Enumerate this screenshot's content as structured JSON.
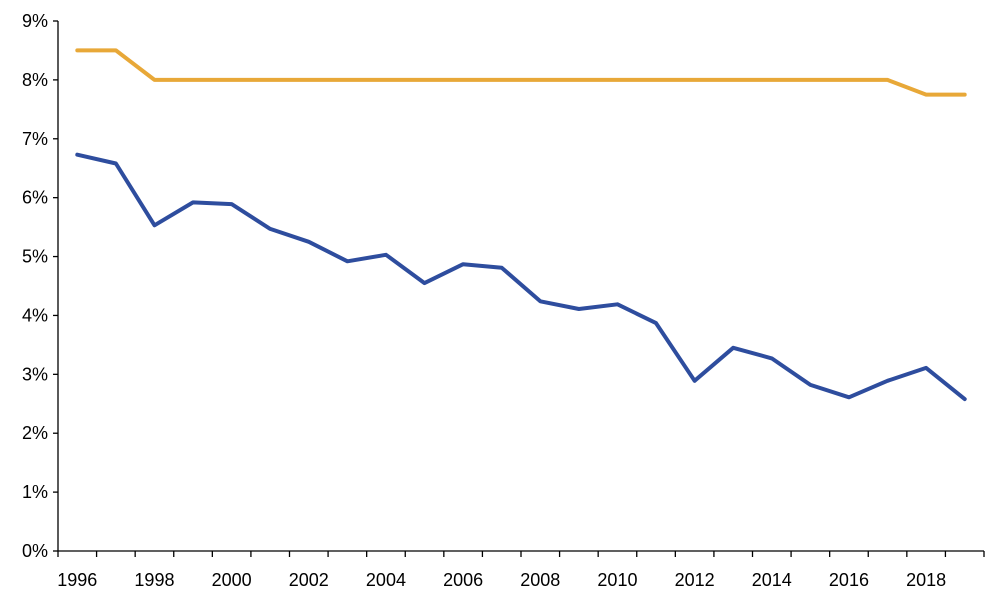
{
  "chart_data": {
    "type": "line",
    "title": "",
    "xlabel": "",
    "ylabel": "",
    "x": [
      1996,
      1997,
      1998,
      1999,
      2000,
      2001,
      2002,
      2003,
      2004,
      2005,
      2006,
      2007,
      2008,
      2009,
      2010,
      2011,
      2012,
      2013,
      2014,
      2015,
      2016,
      2017,
      2018,
      2019
    ],
    "x_tick_labels": [
      "1996",
      "1998",
      "2000",
      "2002",
      "2004",
      "2006",
      "2008",
      "2010",
      "2012",
      "2014",
      "2016",
      "2018"
    ],
    "y_tick_labels": [
      "0%",
      "1%",
      "2%",
      "3%",
      "4%",
      "5%",
      "6%",
      "7%",
      "8%",
      "9%"
    ],
    "ylim": [
      0,
      9
    ],
    "y_unit": "%",
    "grid": false,
    "legend": "none",
    "series": [
      {
        "color": "#E8A838",
        "values": [
          8.5,
          8.5,
          8.0,
          8.0,
          8.0,
          8.0,
          8.0,
          8.0,
          8.0,
          8.0,
          8.0,
          8.0,
          8.0,
          8.0,
          8.0,
          8.0,
          8.0,
          8.0,
          8.0,
          8.0,
          8.0,
          8.0,
          7.75,
          7.75
        ]
      },
      {
        "color": "#2E4D9E",
        "values": [
          6.73,
          6.58,
          5.53,
          5.92,
          5.89,
          5.47,
          5.25,
          4.92,
          5.03,
          4.55,
          4.87,
          4.81,
          4.24,
          4.11,
          4.19,
          3.87,
          2.89,
          3.45,
          3.27,
          2.82,
          2.61,
          2.89,
          3.11,
          2.58
        ]
      }
    ]
  }
}
